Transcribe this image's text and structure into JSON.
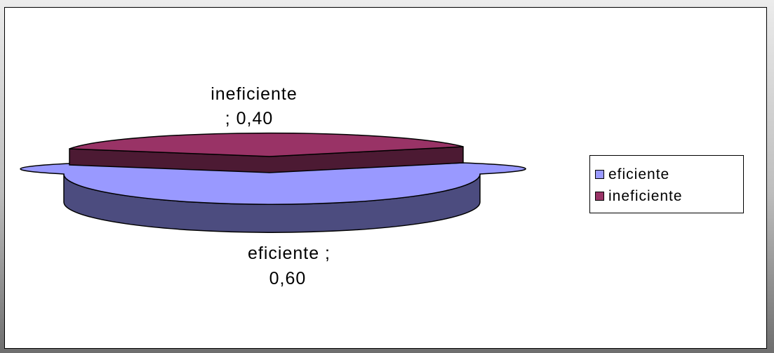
{
  "chart_data": {
    "type": "pie",
    "title": "",
    "slices": [
      {
        "label": "eficiente",
        "value": 0.6,
        "color": "#9999ff",
        "side_color": "#4c4c7f"
      },
      {
        "label": "ineficiente",
        "value": 0.4,
        "color": "#993366",
        "side_color": "#4c1a33"
      }
    ],
    "data_labels": {
      "ineficiente": [
        "ineficiente",
        ";  0,40"
      ],
      "eficiente": [
        "eficiente ;",
        "0,60"
      ]
    },
    "legend": {
      "position": "right",
      "items": [
        "eficiente",
        "ineficiente"
      ]
    },
    "exploded": true,
    "three_d": true
  }
}
